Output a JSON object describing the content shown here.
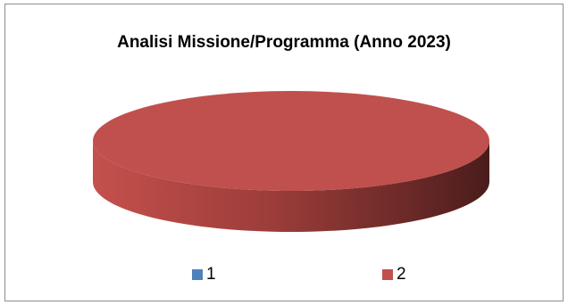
{
  "chart_data": {
    "type": "pie",
    "title": "Analisi Missione/Programma (Anno 2023)",
    "categories": [
      "1",
      "2"
    ],
    "values": [
      0,
      100
    ],
    "colors": [
      "#4f81bd",
      "#c0504d"
    ],
    "legend_position": "bottom",
    "style": "3d"
  }
}
